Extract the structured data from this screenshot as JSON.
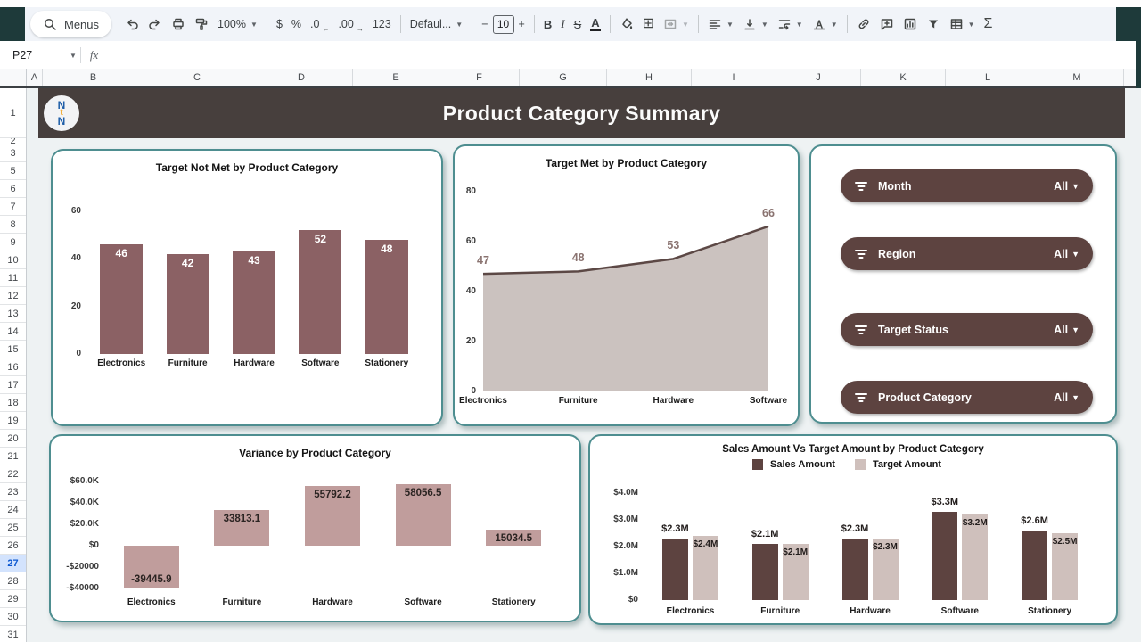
{
  "toolbar": {
    "menus": "Menus",
    "zoom": "100%",
    "currency": "$",
    "percent": "%",
    "decrease_decimal": ".0",
    "increase_decimal": ".00",
    "more_formats": "123",
    "font": "Defaul...",
    "font_size_decrease": "−",
    "font_size": "10",
    "font_size_increase": "+",
    "bold": "B",
    "italic": "I",
    "strikethrough": "S",
    "text_color": "A",
    "functions": "Σ"
  },
  "formula_bar": {
    "cell_reference": "P27",
    "fx": "fx"
  },
  "grid": {
    "columns": [
      "A",
      "B",
      "C",
      "D",
      "E",
      "F",
      "G",
      "H",
      "I",
      "J",
      "K",
      "L",
      "M"
    ],
    "rows": [
      "1",
      "2",
      "3",
      "5",
      "6",
      "7",
      "8",
      "9",
      "10",
      "11",
      "12",
      "13",
      "14",
      "15",
      "16",
      "17",
      "18",
      "19",
      "20",
      "21",
      "22",
      "23",
      "24",
      "25",
      "26",
      "27",
      "28",
      "29",
      "30",
      "31"
    ],
    "selected_row": "27"
  },
  "banner": {
    "title": "Product Category Summary",
    "logo": {
      "top": "N",
      "middle": "t",
      "bottom": "N"
    }
  },
  "filters": {
    "items": [
      {
        "label": "Month",
        "value": "All"
      },
      {
        "label": "Region",
        "value": "All"
      },
      {
        "label": "Target Status",
        "value": "All"
      },
      {
        "label": "Product Category",
        "value": "All"
      }
    ]
  },
  "colors": {
    "banner_bg": "#473f3d",
    "card_border": "#4e8e90",
    "pill_bg": "#5d4340",
    "selected_row_bg": "#d3e3fd",
    "selected_row_text": "#0b57d0"
  },
  "chart_data": [
    {
      "type": "bar",
      "title": "Target Not Met by Product Category",
      "categories": [
        "Electronics",
        "Furniture",
        "Hardware",
        "Software",
        "Stationery"
      ],
      "values": [
        46,
        42,
        43,
        52,
        48
      ],
      "value_labels": [
        "46",
        "42",
        "43",
        "52",
        "48"
      ],
      "yticks": [
        0,
        20,
        40,
        60
      ],
      "ytick_labels": [
        "0",
        "20",
        "40",
        "60"
      ],
      "ylim": [
        0,
        72
      ],
      "bar_color": "#8b6164",
      "label_color": "#ffffff",
      "grid": false,
      "legend_position": "none"
    },
    {
      "type": "area",
      "title": "Target Met by Product Category",
      "categories": [
        "Electronics",
        "Furniture",
        "Hardware",
        "Software"
      ],
      "values": [
        47,
        48,
        53,
        66
      ],
      "value_labels": [
        "47",
        "48",
        "53",
        "66"
      ],
      "yticks": [
        0,
        20,
        40,
        60,
        80
      ],
      "ytick_labels": [
        "0",
        "20",
        "40",
        "60",
        "80"
      ],
      "ylim": [
        0,
        82
      ],
      "fill_color": "#cbc2bf",
      "line_color": "#5c4845",
      "label_color": "#8a7370",
      "grid": false,
      "legend_position": "none"
    },
    {
      "type": "bar",
      "title": "Variance by Product Category",
      "categories": [
        "Electronics",
        "Furniture",
        "Hardware",
        "Software",
        "Stationery"
      ],
      "values": [
        -39445.9,
        33813.1,
        55792.2,
        58056.5,
        15034.5
      ],
      "value_labels": [
        "-39445.9",
        "33813.1",
        "55792.2",
        "58056.5",
        "15034.5"
      ],
      "yticks": [
        60000,
        40000,
        20000,
        0,
        -20000,
        -40000
      ],
      "ytick_labels": [
        "$60.0K",
        "$40.0K",
        "$20.0K",
        "$0",
        "-$20000",
        "-$40000"
      ],
      "ylim": [
        -44000,
        66000
      ],
      "bar_color": "#c09d9c",
      "label_color": "#2b2422",
      "grid": false,
      "legend_position": "none"
    },
    {
      "type": "grouped_bar",
      "title": "Sales Amount Vs Target Amount by Product Category",
      "categories": [
        "Electronics",
        "Furniture",
        "Hardware",
        "Software",
        "Stationery"
      ],
      "series": [
        {
          "name": "Sales Amount",
          "values": [
            2.3,
            2.1,
            2.3,
            3.3,
            2.6
          ],
          "labels": [
            "$2.3M",
            "$2.1M",
            "$2.3M",
            "$3.3M",
            "$2.6M"
          ],
          "color": "#5d4340"
        },
        {
          "name": "Target Amount",
          "values": [
            2.4,
            2.1,
            2.3,
            3.2,
            2.5
          ],
          "labels": [
            "$2.4M",
            "$2.1M",
            "$2.3M",
            "$3.2M",
            "$2.5M"
          ],
          "color": "#cfc0bc"
        }
      ],
      "yticks": [
        4,
        3,
        2,
        1,
        0
      ],
      "ytick_labels": [
        "$4.0M",
        "$3.0M",
        "$2.0M",
        "$1.0M",
        "$0"
      ],
      "ylim": [
        0,
        4.2
      ],
      "grid": false,
      "legend_position": "top"
    }
  ]
}
